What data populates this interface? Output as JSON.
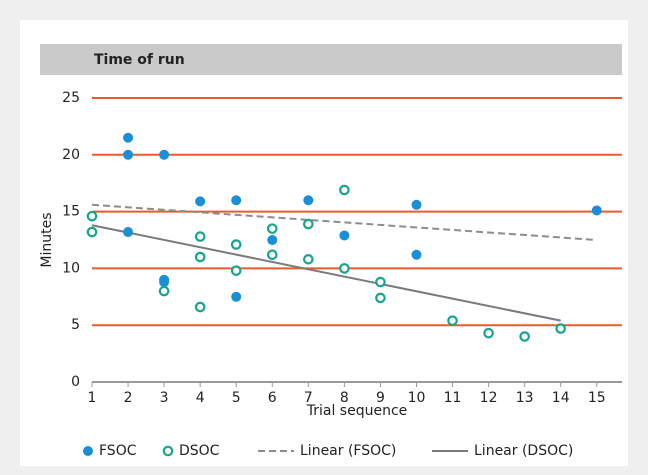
{
  "chart_data": {
    "type": "scatter",
    "title": "Time of run",
    "xlabel": "Trial sequence",
    "ylabel": "Minutes",
    "xlim": [
      1,
      15.7
    ],
    "ylim": [
      0,
      25
    ],
    "xticks": [
      1,
      2,
      3,
      4,
      5,
      6,
      7,
      8,
      9,
      10,
      11,
      12,
      13,
      14,
      15
    ],
    "yticks": [
      0,
      5,
      10,
      15,
      20,
      25
    ],
    "grid": true,
    "grid_color": "#ea5b2b",
    "legend": "bottom",
    "series": [
      {
        "name": "FSOC",
        "color": "#1a8fd6",
        "marker": "filled",
        "x": [
          2,
          2,
          2,
          3,
          3,
          3,
          4,
          5,
          5,
          6,
          7,
          8,
          10,
          10,
          15
        ],
        "values": [
          21.5,
          20,
          13.2,
          20,
          9,
          8.8,
          15.9,
          16,
          7.5,
          12.5,
          16,
          12.9,
          15.6,
          11.2,
          15.1
        ]
      },
      {
        "name": "DSOC",
        "color": "#16a58c",
        "marker": "open",
        "x": [
          1,
          1,
          3,
          4,
          4,
          4,
          5,
          5,
          6,
          6,
          7,
          7,
          8,
          8,
          9,
          9,
          11,
          12,
          13,
          14
        ],
        "values": [
          14.6,
          13.2,
          8,
          12.8,
          11,
          6.6,
          12.1,
          9.8,
          13.5,
          11.2,
          13.9,
          10.8,
          16.9,
          10,
          8.8,
          7.4,
          5.4,
          4.3,
          4,
          4.7
        ]
      }
    ],
    "trendlines": [
      {
        "name": "Linear (FSOC)",
        "color": "#8c8c8c",
        "dashed": true,
        "x": [
          1,
          15
        ],
        "values": [
          15.6,
          12.5
        ]
      },
      {
        "name": "Linear (DSOC)",
        "color": "#7a7a7a",
        "dashed": false,
        "x": [
          1,
          14
        ],
        "values": [
          13.8,
          5.4
        ]
      }
    ]
  }
}
